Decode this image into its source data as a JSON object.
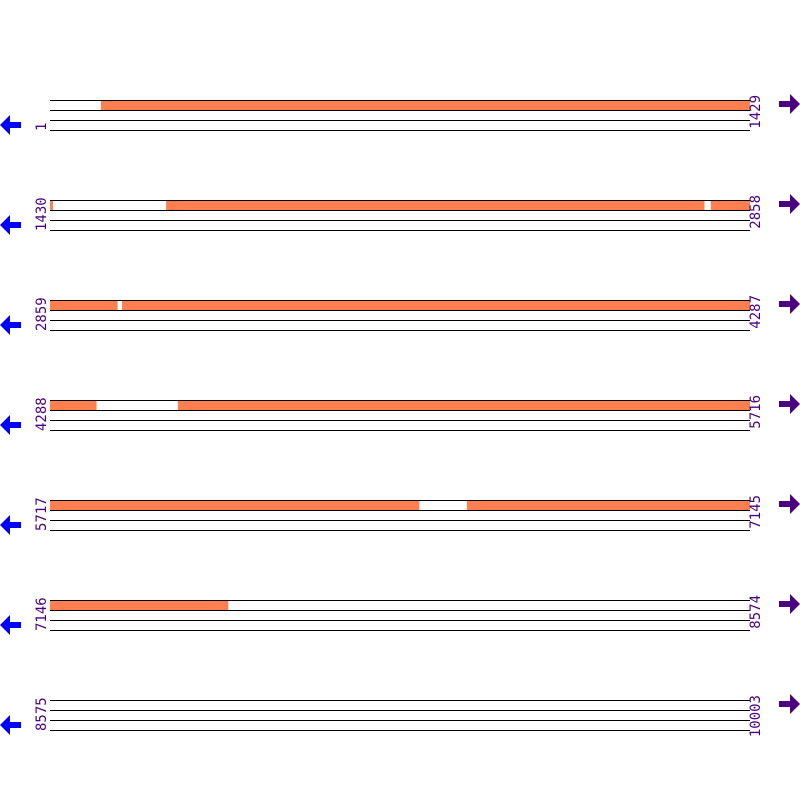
{
  "colors": {
    "feature": "#ff7f50",
    "line": "#000000",
    "label": "#4b0082",
    "left_arrow": "#0000ff",
    "right_arrow": "#4b0082"
  },
  "icons": {
    "left": "arrow-left-icon",
    "right": "arrow-right-icon"
  },
  "rows": [
    {
      "start": "1",
      "end": "1429",
      "features": [
        [
          105,
          1429
        ]
      ]
    },
    {
      "start": "1430",
      "end": "2858",
      "features": [
        [
          1430,
          1435
        ],
        [
          1667,
          2765
        ],
        [
          2779,
          2858
        ]
      ]
    },
    {
      "start": "2859",
      "end": "4287",
      "features": [
        [
          2859,
          2996
        ],
        [
          3006,
          4287
        ]
      ]
    },
    {
      "start": "4288",
      "end": "5716",
      "features": [
        [
          4288,
          4382
        ],
        [
          4549,
          5716
        ]
      ]
    },
    {
      "start": "5717",
      "end": "7145",
      "features": [
        [
          5717,
          6470
        ],
        [
          6568,
          7145
        ]
      ]
    },
    {
      "start": "7146",
      "end": "8574",
      "features": [
        [
          7146,
          7509
        ]
      ]
    },
    {
      "start": "8575",
      "end": "10003",
      "features": []
    }
  ]
}
